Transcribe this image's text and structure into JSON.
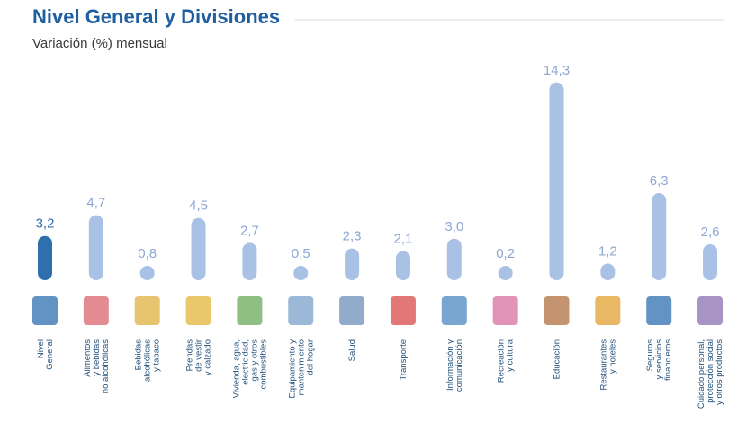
{
  "chart_data": {
    "type": "bar",
    "title": "Nivel General y Divisiones",
    "subtitle": "Variación (%) mensual",
    "categories": [
      "Nivel\nGeneral",
      "Alimentos\ny bebidas\nno alcohólicas",
      "Bebidas\nalcohólicas\ny tabaco",
      "Prendas\nde vestir\ny calzado",
      "Vivienda, agua,\nelectricidad,\ngas y otros\ncombustibles",
      "Equipamiento y\nmantenimiento\ndel hogar",
      "Salud",
      "Transporte",
      "Información y\ncomunicación",
      "Recreación\ny cultura",
      "Educación",
      "Restaurantes\ny hoteles",
      "Seguros\ny servicios\nfinancieros",
      "Cuidado personal,\nprotección social\ny otros productos"
    ],
    "values": [
      3.2,
      4.7,
      0.8,
      4.5,
      2.7,
      0.5,
      2.3,
      2.1,
      3.0,
      0.2,
      14.3,
      1.2,
      6.3,
      2.6
    ],
    "value_labels": [
      "3,2",
      "4,7",
      "0,8",
      "4,5",
      "2,7",
      "0,5",
      "2,3",
      "2,1",
      "3,0",
      "0,2",
      "14,3",
      "1,2",
      "6,3",
      "2,6"
    ],
    "colors": [
      "#2f6fae",
      "#a9c1e4",
      "#a9c1e4",
      "#a9c1e4",
      "#a9c1e4",
      "#a9c1e4",
      "#a9c1e4",
      "#a9c1e4",
      "#a9c1e4",
      "#a9c1e4",
      "#a9c1e4",
      "#a9c1e4",
      "#a9c1e4",
      "#a9c1e4"
    ],
    "label_colors": [
      "#2f6fae",
      "#8ca8d2",
      "#8ca8d2",
      "#8ca8d2",
      "#8ca8d2",
      "#8ca8d2",
      "#8ca8d2",
      "#8ca8d2",
      "#8ca8d2",
      "#8ca8d2",
      "#8ca8d2",
      "#8ca8d2",
      "#8ca8d2",
      "#8ca8d2"
    ],
    "ylim": [
      0,
      15
    ]
  }
}
